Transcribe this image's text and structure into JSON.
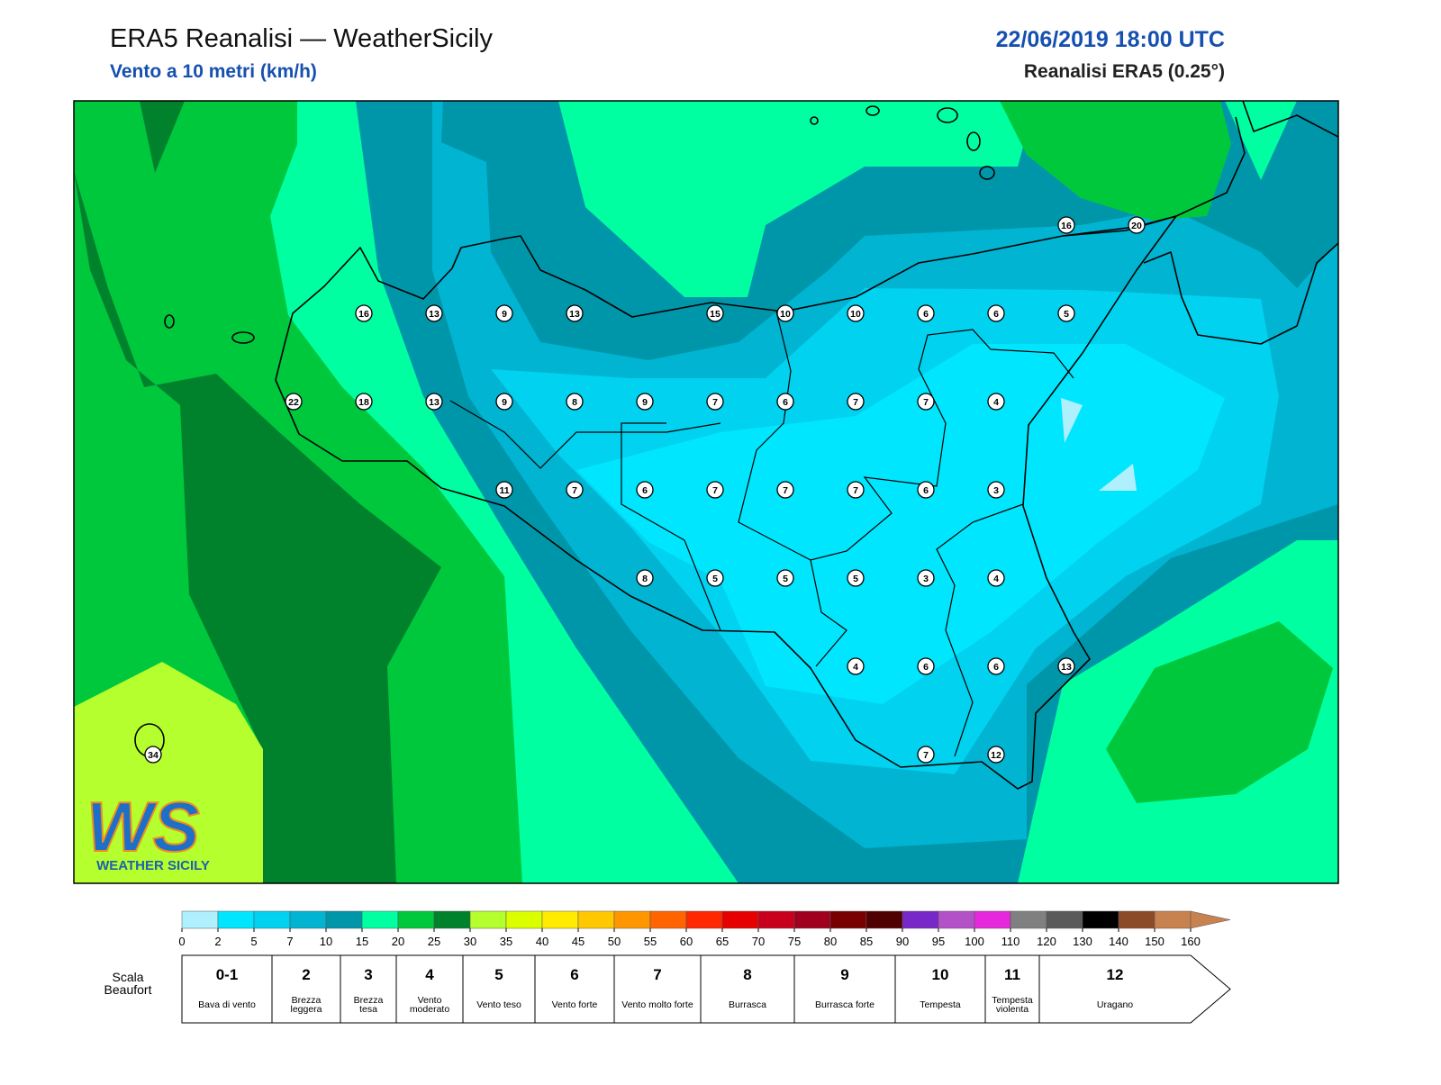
{
  "header": {
    "title": "ERA5 Reanalisi — WeatherSicily",
    "subtitle": "Vento a 10 metri (km/h)",
    "datetime": "22/06/2019 18:00 UTC",
    "source": "Reanalisi ERA5 (0.25°)"
  },
  "stations": {
    "rows": [
      [
        null,
        null,
        null,
        null,
        null,
        null,
        null,
        null,
        null,
        null,
        null,
        null,
        null,
        16,
        20
      ],
      [
        null,
        null,
        null,
        16,
        13,
        9,
        13,
        null,
        15,
        10,
        10,
        6,
        6,
        5,
        null
      ],
      [
        null,
        null,
        22,
        18,
        13,
        9,
        8,
        9,
        7,
        6,
        7,
        7,
        4,
        null,
        null
      ],
      [
        null,
        null,
        null,
        null,
        null,
        11,
        7,
        6,
        7,
        7,
        7,
        6,
        3,
        null,
        null
      ],
      [
        null,
        null,
        null,
        null,
        null,
        null,
        null,
        8,
        5,
        5,
        5,
        3,
        4,
        null,
        null
      ],
      [
        null,
        null,
        null,
        null,
        null,
        null,
        null,
        null,
        null,
        null,
        4,
        6,
        6,
        13,
        null
      ],
      [
        34,
        null,
        null,
        null,
        null,
        null,
        null,
        null,
        null,
        null,
        null,
        7,
        12,
        null,
        null
      ]
    ]
  },
  "logo": {
    "mark": "WS",
    "name": "WEATHER SICILY"
  },
  "colorbar": {
    "ticks": [
      0,
      2,
      5,
      7,
      10,
      15,
      20,
      25,
      30,
      35,
      40,
      45,
      50,
      55,
      60,
      65,
      70,
      75,
      80,
      85,
      90,
      95,
      100,
      110,
      120,
      130,
      140,
      150,
      160
    ],
    "colors": [
      "#aff0ff",
      "#00e6ff",
      "#00d2f0",
      "#00b4d2",
      "#0096aa",
      "#00ffa0",
      "#00c83c",
      "#00822d",
      "#b4ff2d",
      "#dcff00",
      "#ffeb00",
      "#ffc800",
      "#ff9600",
      "#ff6400",
      "#ff2800",
      "#e60000",
      "#c8001e",
      "#a0001e",
      "#780000",
      "#500000",
      "#7828c8",
      "#b450c8",
      "#e628dc",
      "#808080",
      "#5a5a5a",
      "#000000",
      "#8c4b28",
      "#c88250"
    ]
  },
  "beaufort": {
    "label": "Scala Beaufort",
    "scale": [
      {
        "force": "0-1",
        "description": "Bava di vento"
      },
      {
        "force": "2",
        "description": "Brezza leggera"
      },
      {
        "force": "3",
        "description": "Brezza tesa"
      },
      {
        "force": "4",
        "description": "Vento moderato"
      },
      {
        "force": "5",
        "description": "Vento teso"
      },
      {
        "force": "6",
        "description": "Vento forte"
      },
      {
        "force": "7",
        "description": "Vento molto forte"
      },
      {
        "force": "8",
        "description": "Burrasca"
      },
      {
        "force": "9",
        "description": "Burrasca forte"
      },
      {
        "force": "10",
        "description": "Tempesta"
      },
      {
        "force": "11",
        "description": "Tempesta violenta"
      },
      {
        "force": "12",
        "description": "Uragano"
      }
    ]
  }
}
